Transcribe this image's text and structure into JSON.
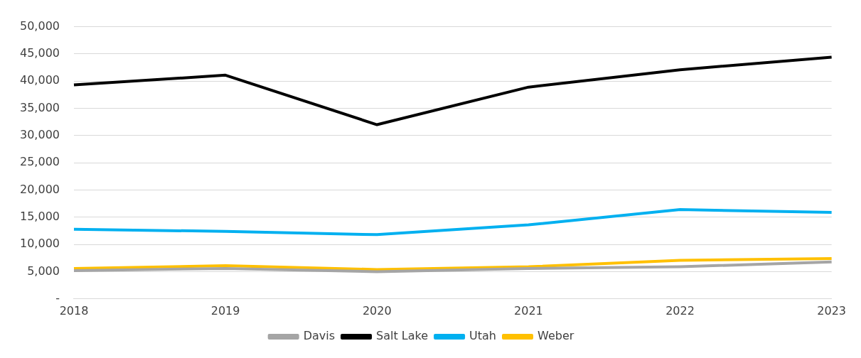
{
  "chart_data": {
    "type": "line",
    "categories": [
      "2018",
      "2019",
      "2020",
      "2021",
      "2022",
      "2023"
    ],
    "series": [
      {
        "name": "Davis",
        "color": "#a5a5a5",
        "values": [
          5200,
          5600,
          5000,
          5600,
          5900,
          6800
        ]
      },
      {
        "name": "Salt Lake",
        "color": "#000000",
        "values": [
          39300,
          41100,
          32000,
          38900,
          42100,
          44400
        ]
      },
      {
        "name": "Utah",
        "color": "#00b0f0",
        "values": [
          12800,
          12400,
          11800,
          13600,
          16400,
          15900
        ]
      },
      {
        "name": "Weber",
        "color": "#ffc000",
        "values": [
          5600,
          6100,
          5400,
          5900,
          7100,
          7400
        ]
      }
    ],
    "ylim": [
      0,
      50000
    ],
    "yticks": [
      {
        "value": 0,
        "label": "-"
      },
      {
        "value": 5000,
        "label": "5,000"
      },
      {
        "value": 10000,
        "label": "10,000"
      },
      {
        "value": 15000,
        "label": "15,000"
      },
      {
        "value": 20000,
        "label": "20,000"
      },
      {
        "value": 25000,
        "label": "25,000"
      },
      {
        "value": 30000,
        "label": "30,000"
      },
      {
        "value": 35000,
        "label": "35,000"
      },
      {
        "value": 40000,
        "label": "40,000"
      },
      {
        "value": 45000,
        "label": "45,000"
      },
      {
        "value": 50000,
        "label": "50,000"
      }
    ],
    "grid": "y",
    "legend": "bottom",
    "marker": "none",
    "line_style": "solid"
  }
}
